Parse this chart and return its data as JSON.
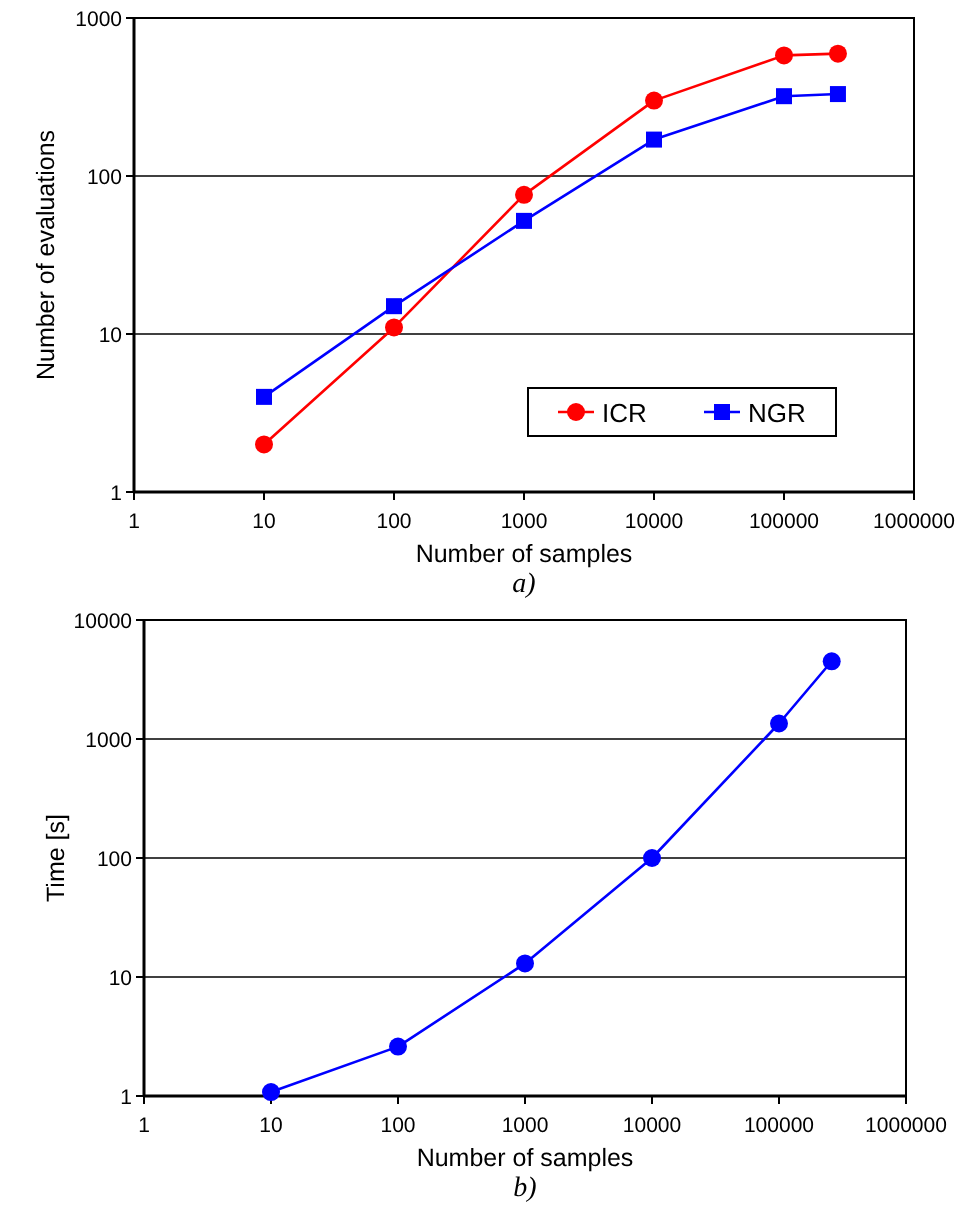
{
  "chart_data": [
    {
      "type": "line",
      "xlabel": "Number of samples",
      "ylabel": "Number of evaluations",
      "annotations": [
        "a)"
      ],
      "log": "xy",
      "grid": "y",
      "legend": "bottom right",
      "xlim": [
        1,
        1000000
      ],
      "xticks": [
        1,
        10,
        100,
        1000,
        10000,
        100000,
        1000000
      ],
      "ylim": [
        1,
        1000
      ],
      "yticks": [
        1,
        10,
        100,
        1000
      ],
      "series": [
        {
          "name": "ICR",
          "color": "#ff0000",
          "marker": "circle",
          "x": [
            10,
            100,
            1000,
            10000,
            100000,
            260000
          ],
          "values": [
            2,
            11,
            76,
            300,
            580,
            595
          ]
        },
        {
          "name": "NGR",
          "color": "#0000ff",
          "marker": "square",
          "x": [
            10,
            100,
            1000,
            10000,
            100000,
            260000
          ],
          "values": [
            4,
            15,
            52,
            170,
            320,
            330
          ]
        }
      ]
    },
    {
      "type": "line",
      "xlabel": "Number of samples",
      "ylabel": "Time [s]",
      "annotations": [
        "b)"
      ],
      "log": "xy",
      "grid": "y",
      "marker": "circle",
      "xlim": [
        1,
        1000000
      ],
      "xticks": [
        1,
        10,
        100,
        1000,
        10000,
        100000,
        1000000
      ],
      "ylim": [
        1,
        10000
      ],
      "yticks": [
        1,
        10,
        100,
        1000,
        10000
      ],
      "series": [
        {
          "color": "#0000ff",
          "x": [
            10,
            100,
            1000,
            10000,
            100000,
            260000
          ],
          "values": [
            1.08,
            2.6,
            13,
            100,
            1350,
            4500
          ]
        }
      ]
    }
  ]
}
